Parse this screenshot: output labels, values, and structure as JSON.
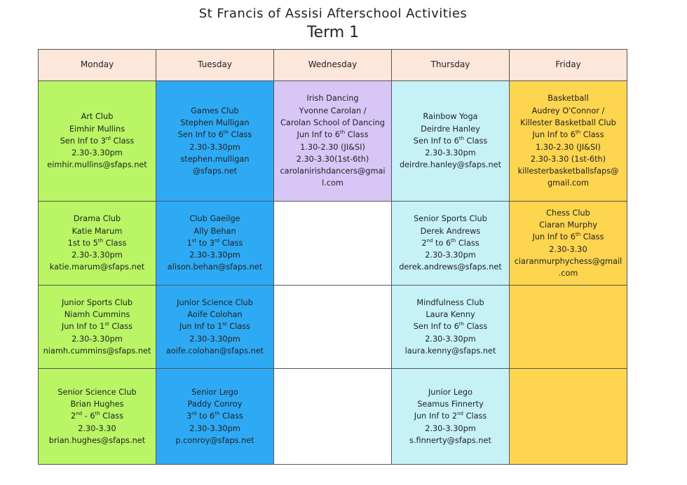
{
  "header": {
    "title": "St Francis of Assisi Afterschool Activities",
    "subtitle": "Term 1"
  },
  "days": [
    "Monday",
    "Tuesday",
    "Wednesday",
    "Thursday",
    "Friday"
  ],
  "colors": {
    "header": "#fde6da",
    "monday": "#b9f565",
    "tuesday": "#2eaaf5",
    "wednesday": "#d8c6f7",
    "thursday": "#c6f2f7",
    "friday": "#fdd54f",
    "empty": "#ffffff"
  },
  "rows": [
    [
      {
        "color": "#b9f565",
        "lines": [
          [
            "Art Club"
          ],
          [
            "Eimhir Mullins"
          ],
          [
            "Sen Inf to 3",
            "rd",
            " Class"
          ],
          [
            "2.30-3.30pm"
          ],
          [
            "eimhir.mullins@sfaps.net"
          ]
        ]
      },
      {
        "color": "#2eaaf5",
        "lines": [
          [
            "Games Club"
          ],
          [
            "Stephen Mulligan"
          ],
          [
            "Sen Inf to 6",
            "th",
            " Class"
          ],
          [
            "2.30-3.30pm"
          ],
          [
            "stephen.mulligan"
          ],
          [
            "@sfaps.net"
          ]
        ]
      },
      {
        "color": "#d8c6f7",
        "lines": [
          [
            "Irish Dancing"
          ],
          [
            "Yvonne Carolan /"
          ],
          [
            "Carolan School of Dancing"
          ],
          [
            "Jun Inf to 6",
            "th",
            " Class"
          ],
          [
            "1.30-2.30 (JI&SI)"
          ],
          [
            "2.30-3.30(1st-6th)"
          ],
          [
            "carolanirishdancers@gmai"
          ],
          [
            "l.com"
          ]
        ]
      },
      {
        "color": "#c6f2f7",
        "lines": [
          [
            "Rainbow Yoga"
          ],
          [
            "Deirdre Hanley"
          ],
          [
            "Sen Inf to 6",
            "th",
            " Class"
          ],
          [
            "2.30-3.30pm"
          ],
          [
            "deirdre.hanley@sfaps.net"
          ]
        ]
      },
      {
        "color": "#fdd54f",
        "lines": [
          [
            "Basketball"
          ],
          [
            "Audrey O'Connor /"
          ],
          [
            "Killester Basketball Club"
          ],
          [
            "Jun Inf to 6",
            "th",
            " Class"
          ],
          [
            "1.30-2.30 (JI&SI)"
          ],
          [
            "2.30-3.30 (1st-6th)"
          ],
          [
            "killesterbasketballsfaps@"
          ],
          [
            "gmail.com"
          ]
        ]
      }
    ],
    [
      {
        "color": "#b9f565",
        "lines": [
          [
            "Drama Club"
          ],
          [
            "Katie Marum"
          ],
          [
            "1st to 5",
            "th",
            " Class"
          ],
          [
            "2.30-3.30pm"
          ],
          [
            "katie.marum@sfaps.net"
          ]
        ]
      },
      {
        "color": "#2eaaf5",
        "lines": [
          [
            "Club Gaeilge"
          ],
          [
            "Ally Behan"
          ],
          [
            "1",
            "st",
            " to 3",
            "rd",
            " Class"
          ],
          [
            "2.30-3.30pm"
          ],
          [
            "alison.behan@sfaps.net"
          ]
        ]
      },
      {
        "color": "#ffffff",
        "lines": []
      },
      {
        "color": "#c6f2f7",
        "lines": [
          [
            "Senior Sports Club"
          ],
          [
            "Derek Andrews"
          ],
          [
            "2",
            "nd",
            " to 6",
            "th",
            " Class"
          ],
          [
            "2.30-3.30pm"
          ],
          [
            "derek.andrews@sfaps.net"
          ]
        ]
      },
      {
        "color": "#fdd54f",
        "lines": [
          [
            "Chess Club"
          ],
          [
            "Ciaran Murphy"
          ],
          [
            "Jun Inf to 6",
            "th",
            " Class"
          ],
          [
            "2.30-3.30"
          ],
          [
            "ciaranmurphychess@gmail"
          ],
          [
            ".com"
          ]
        ]
      }
    ],
    [
      {
        "color": "#b9f565",
        "lines": [
          [
            "Junior Sports Club"
          ],
          [
            "Niamh Cummins"
          ],
          [
            "Jun Inf to 1",
            "st",
            " Class"
          ],
          [
            "2.30-3.30pm"
          ],
          [
            "niamh.cummins@sfaps.net"
          ]
        ]
      },
      {
        "color": "#2eaaf5",
        "lines": [
          [
            "Junior Science Club"
          ],
          [
            "Aoife Colohan"
          ],
          [
            "Jun Inf to 1",
            "st",
            " Class"
          ],
          [
            "2.30-3.30pm"
          ],
          [
            "aoife.colohan@sfaps.net"
          ]
        ]
      },
      {
        "color": "#ffffff",
        "lines": []
      },
      {
        "color": "#c6f2f7",
        "lines": [
          [
            "Mindfulness Club"
          ],
          [
            "Laura Kenny"
          ],
          [
            "Sen Inf to 6",
            "th",
            " Class"
          ],
          [
            "2.30-3.30pm"
          ],
          [
            "laura.kenny@sfaps.net"
          ]
        ]
      },
      {
        "color": "#fdd54f",
        "lines": []
      }
    ],
    [
      {
        "color": "#b9f565",
        "lines": [
          [
            "Senior Science Club"
          ],
          [
            "Brian Hughes"
          ],
          [
            "2",
            "nd",
            " - 6",
            "th",
            " Class"
          ],
          [
            "2.30-3.30"
          ],
          [
            "brian.hughes@sfaps.net"
          ]
        ]
      },
      {
        "color": "#2eaaf5",
        "lines": [
          [
            "Senior Lego"
          ],
          [
            "Paddy Conroy"
          ],
          [
            "3",
            "rd",
            " to 6",
            "th",
            " Class"
          ],
          [
            "2.30-3.30pm"
          ],
          [
            "p.conroy@sfaps.net"
          ]
        ]
      },
      {
        "color": "#ffffff",
        "lines": []
      },
      {
        "color": "#c6f2f7",
        "lines": [
          [
            "Junior Lego"
          ],
          [
            "Seamus Finnerty"
          ],
          [
            "Jun Inf to 2",
            "nd",
            " Class"
          ],
          [
            "2.30-3.30pm"
          ],
          [
            "s.finnerty@sfaps.net"
          ]
        ]
      },
      {
        "color": "#fdd54f",
        "lines": []
      }
    ]
  ]
}
